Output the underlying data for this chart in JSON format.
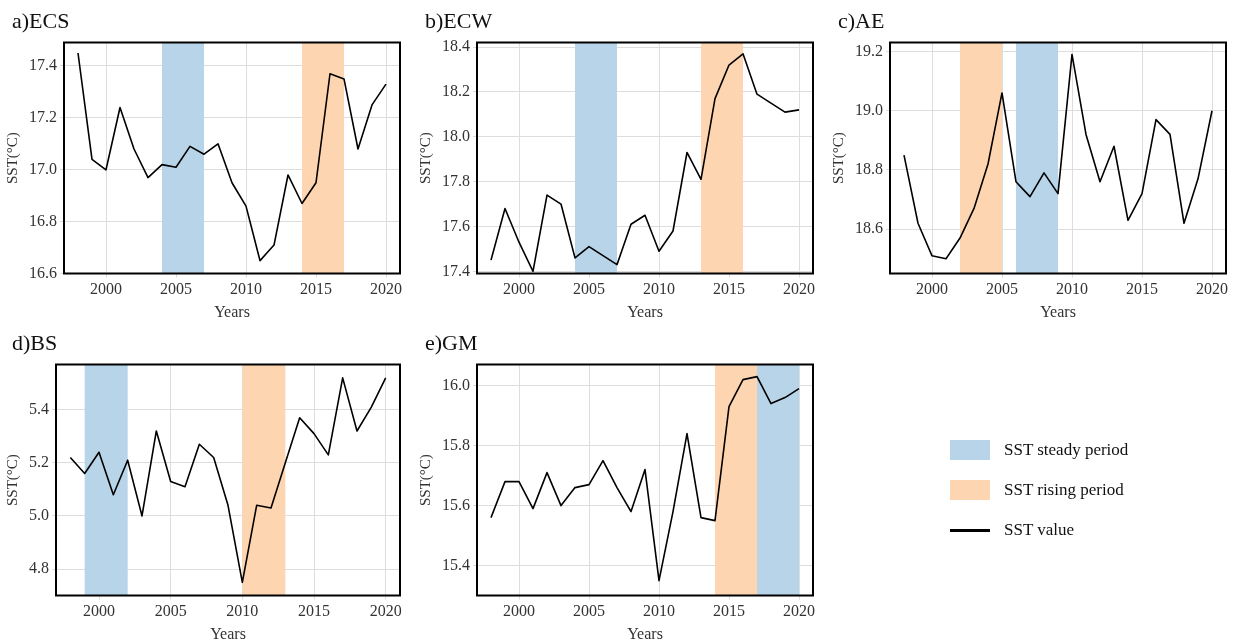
{
  "chart_data": [
    {
      "type": "line",
      "title": "a)ECS",
      "xlabel": "Years",
      "ylabel": "SST(°C)",
      "x": [
        1998,
        1999,
        2000,
        2001,
        2002,
        2003,
        2004,
        2005,
        2006,
        2007,
        2008,
        2009,
        2010,
        2011,
        2012,
        2013,
        2014,
        2015,
        2016,
        2017,
        2018,
        2019,
        2020
      ],
      "series": [
        {
          "name": "SST value",
          "color": "#000000",
          "values": [
            17.45,
            17.04,
            17.0,
            17.24,
            17.08,
            16.97,
            17.02,
            17.01,
            17.09,
            17.06,
            17.1,
            16.95,
            16.86,
            16.65,
            16.71,
            16.98,
            16.87,
            16.95,
            17.37,
            17.35,
            17.08,
            17.25,
            17.33
          ]
        }
      ],
      "xlim": [
        1997,
        2021
      ],
      "xticks": [
        2000,
        2005,
        2010,
        2015,
        2020
      ],
      "ylim": [
        16.6,
        17.49
      ],
      "yticks": [
        16.6,
        16.8,
        {
          "value": 17,
          "label": "17.0"
        },
        17.2,
        17.4
      ],
      "grid": true,
      "legend": "bottom right",
      "bands": [
        {
          "axis": "x",
          "from": 2004,
          "to": 2007,
          "label": "SST steady period",
          "color": "#b8d4e8"
        },
        {
          "axis": "x",
          "from": 2014,
          "to": 2017,
          "label": "SST rising period",
          "color": "#fdd5b0"
        }
      ]
    },
    {
      "type": "line",
      "title": "b)ECW",
      "xlabel": "Years",
      "ylabel": "SST(°C)",
      "x": [
        1998,
        1999,
        2000,
        2001,
        2002,
        2003,
        2004,
        2005,
        2006,
        2007,
        2008,
        2009,
        2010,
        2011,
        2012,
        2013,
        2014,
        2015,
        2016,
        2017,
        2018,
        2019,
        2020
      ],
      "series": [
        {
          "color": "#000000",
          "values": [
            17.45,
            17.68,
            17.53,
            17.4,
            17.74,
            17.7,
            17.46,
            17.51,
            17.47,
            17.43,
            17.61,
            17.65,
            17.49,
            17.58,
            17.93,
            17.81,
            18.17,
            18.32,
            18.37,
            18.19,
            18.15,
            18.11,
            18.12
          ]
        }
      ],
      "xlim": [
        1997,
        2021
      ],
      "xticks": [
        2000,
        2005,
        2010,
        2015,
        2020
      ],
      "ylim": [
        17.39,
        18.42
      ],
      "yticks": [
        17.4,
        17.6,
        17.8,
        {
          "value": 18,
          "label": "18.0"
        },
        18.2,
        18.4
      ],
      "grid": true,
      "bands": [
        {
          "axis": "x",
          "from": 2004,
          "to": 2007,
          "color": "#b8d4e8"
        },
        {
          "axis": "x",
          "from": 2013,
          "to": 2016,
          "color": "#fdd5b0"
        }
      ]
    },
    {
      "type": "line",
      "title": "c)AE",
      "xlabel": "Years",
      "ylabel": "SST(°C)",
      "x": [
        1998,
        1999,
        2000,
        2001,
        2002,
        2003,
        2004,
        2005,
        2006,
        2007,
        2008,
        2009,
        2010,
        2011,
        2012,
        2013,
        2014,
        2015,
        2016,
        2017,
        2018,
        2019,
        2020
      ],
      "series": [
        {
          "color": "#000000",
          "values": [
            18.85,
            18.62,
            18.51,
            18.5,
            18.57,
            18.67,
            18.82,
            19.06,
            18.76,
            18.71,
            18.79,
            18.72,
            19.19,
            18.92,
            18.76,
            18.88,
            18.63,
            18.72,
            18.97,
            18.92,
            18.62,
            18.77,
            19.0
          ]
        }
      ],
      "xlim": [
        1997,
        2021
      ],
      "xticks": [
        2000,
        2005,
        2010,
        2015,
        2020
      ],
      "ylim": [
        18.45,
        19.23
      ],
      "yticks": [
        18.6,
        18.8,
        {
          "value": 19,
          "label": "19.0"
        },
        19.2
      ],
      "grid": true,
      "bands": [
        {
          "axis": "x",
          "from": 2002,
          "to": 2005,
          "color": "#fdd5b0"
        },
        {
          "axis": "x",
          "from": 2006,
          "to": 2009,
          "color": "#b8d4e8"
        }
      ]
    },
    {
      "type": "line",
      "title": "d)BS",
      "xlabel": "Years",
      "ylabel": "SST(°C)",
      "x": [
        1998,
        1999,
        2000,
        2001,
        2002,
        2003,
        2004,
        2005,
        2006,
        2007,
        2008,
        2009,
        2010,
        2011,
        2012,
        2013,
        2014,
        2015,
        2016,
        2017,
        2018,
        2019,
        2020
      ],
      "series": [
        {
          "color": "#000000",
          "values": [
            5.22,
            5.16,
            5.24,
            5.08,
            5.21,
            5.0,
            5.32,
            5.13,
            5.11,
            5.27,
            5.22,
            5.04,
            4.75,
            5.04,
            5.03,
            5.2,
            5.37,
            5.31,
            5.23,
            5.52,
            5.32,
            5.41,
            5.52
          ]
        }
      ],
      "xlim": [
        1997,
        2021
      ],
      "xticks": [
        2000,
        2005,
        2010,
        2015,
        2020
      ],
      "ylim": [
        4.7,
        5.57
      ],
      "yticks": [
        4.8,
        {
          "value": 5,
          "label": "5.0"
        },
        5.2,
        5.4
      ],
      "grid": true,
      "bands": [
        {
          "axis": "x",
          "from": 1999,
          "to": 2002,
          "color": "#b8d4e8"
        },
        {
          "axis": "x",
          "from": 2010,
          "to": 2013,
          "color": "#fdd5b0"
        }
      ]
    },
    {
      "type": "line",
      "title": "e)GM",
      "xlabel": "Years",
      "ylabel": "SST(°C)",
      "x": [
        1998,
        1999,
        2000,
        2001,
        2002,
        2003,
        2004,
        2005,
        2006,
        2007,
        2008,
        2009,
        2010,
        2011,
        2012,
        2013,
        2014,
        2015,
        2016,
        2017,
        2018,
        2019,
        2020
      ],
      "series": [
        {
          "color": "#000000",
          "values": [
            15.56,
            15.68,
            15.68,
            15.59,
            15.71,
            15.6,
            15.66,
            15.67,
            15.75,
            15.66,
            15.58,
            15.72,
            15.35,
            15.58,
            15.84,
            15.56,
            15.55,
            15.93,
            16.02,
            16.03,
            15.94,
            15.96,
            15.99
          ]
        }
      ],
      "xlim": [
        1997,
        2021
      ],
      "xticks": [
        2000,
        2005,
        2010,
        2015,
        2020
      ],
      "ylim": [
        15.3,
        16.07
      ],
      "yticks": [
        15.4,
        15.6,
        15.8,
        {
          "value": 16,
          "label": "16.0"
        }
      ],
      "grid": true,
      "bands": [
        {
          "axis": "x",
          "from": 2014,
          "to": 2017,
          "color": "#fdd5b0"
        },
        {
          "axis": "x",
          "from": 2017,
          "to": 2020,
          "color": "#b8d4e8"
        }
      ]
    }
  ]
}
